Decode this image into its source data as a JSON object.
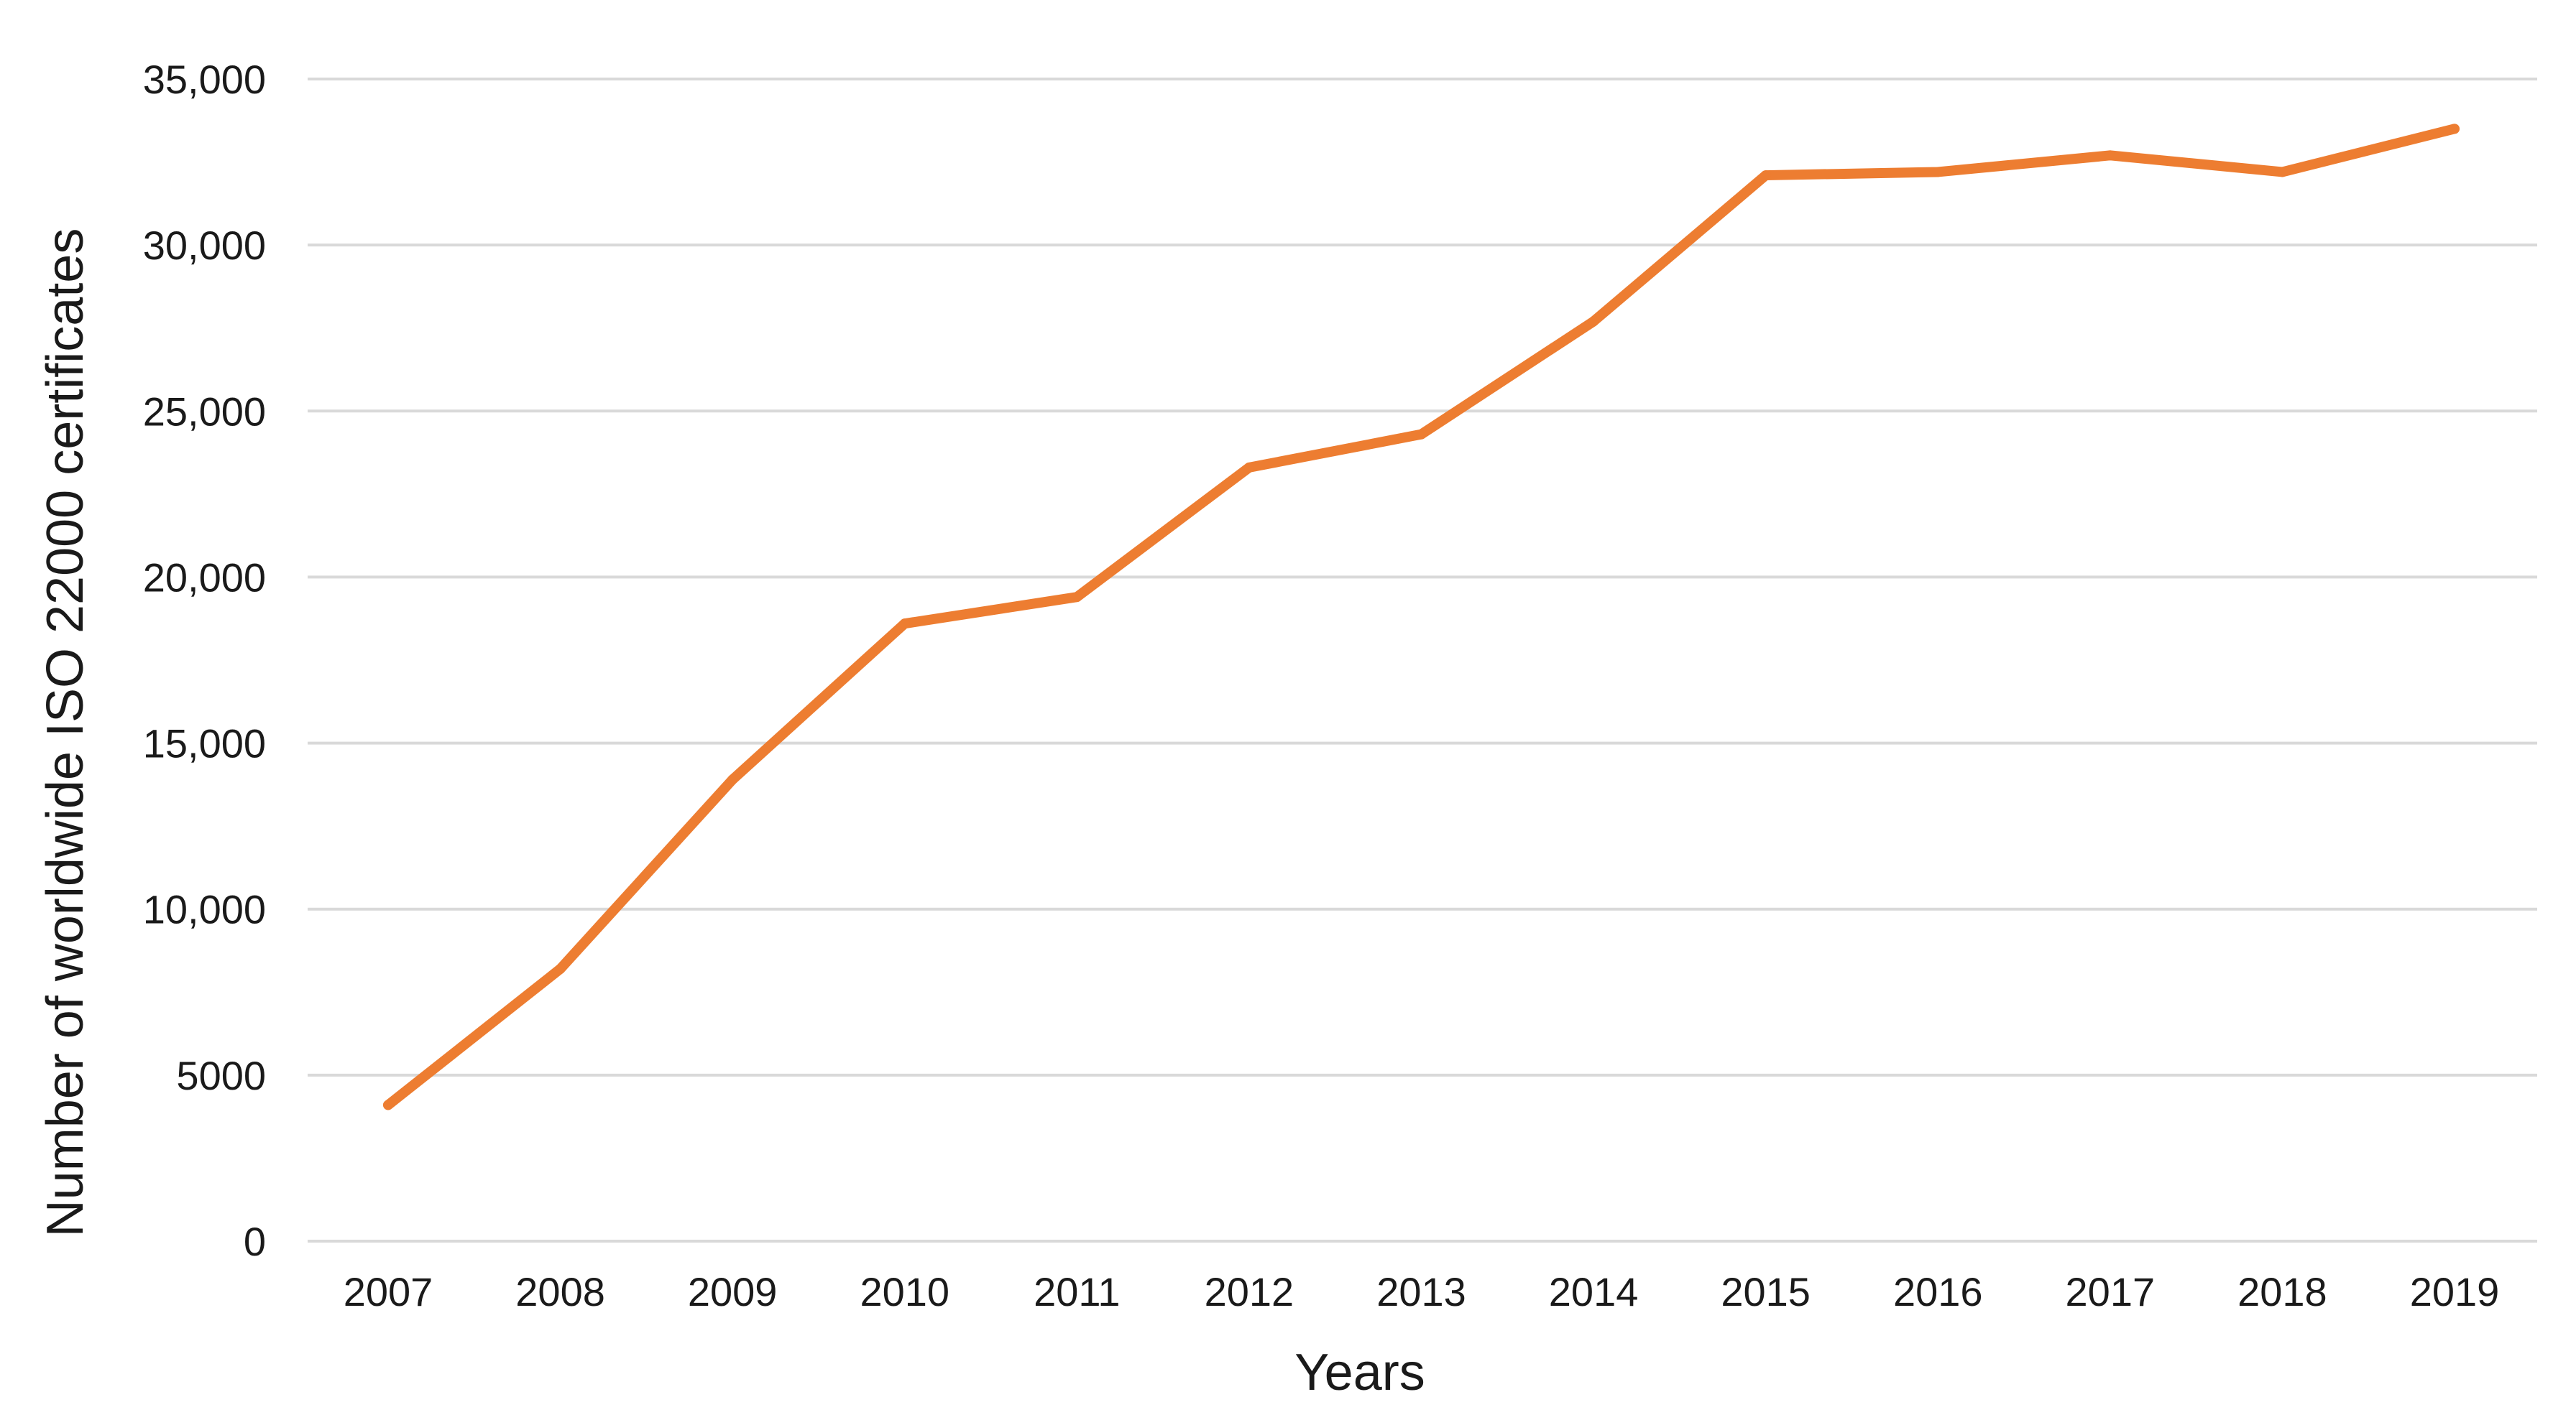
{
  "chart_data": {
    "type": "line",
    "title": "",
    "xlabel": "Years",
    "ylabel": "Number of worldwide ISO 22000 certificates",
    "x": [
      "2007",
      "2008",
      "2009",
      "2010",
      "2011",
      "2012",
      "2013",
      "2014",
      "2015",
      "2016",
      "2017",
      "2018",
      "2019"
    ],
    "series": [
      {
        "values": [
          4100,
          8200,
          13900,
          18600,
          19400,
          23300,
          24300,
          27700,
          32100,
          32200,
          32700,
          32200,
          33500
        ],
        "color": "#ed7d31"
      }
    ],
    "ylim": [
      0,
      35000
    ],
    "yticks": [
      {
        "value": 0,
        "label": "0"
      },
      {
        "value": 5000,
        "label": "5000"
      },
      {
        "value": 10000,
        "label": "10,000"
      },
      {
        "value": 15000,
        "label": "15,000"
      },
      {
        "value": 20000,
        "label": "20,000"
      },
      {
        "value": 25000,
        "label": "25,000"
      },
      {
        "value": 30000,
        "label": "30,000"
      },
      {
        "value": 35000,
        "label": "35,000"
      }
    ],
    "grid": true,
    "legend": "none",
    "gridline_color": "#d9d9d9"
  }
}
